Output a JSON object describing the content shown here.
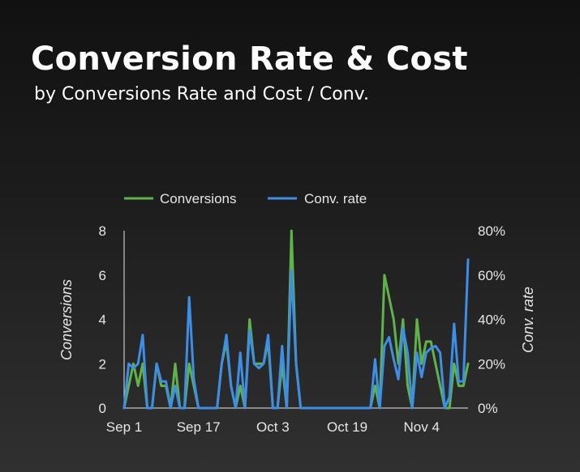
{
  "header": {
    "title": "Conversion Rate & Cost",
    "subtitle": "by Conversions Rate and Cost / Conv."
  },
  "colors": {
    "conversions": "#5fb348",
    "conv_rate": "#3d8ee6",
    "axis": "#e6e6e6"
  },
  "chart_data": {
    "type": "line",
    "title": "Conversion Rate & Cost",
    "subtitle": "by Conversions Rate and Cost / Conv.",
    "xlabel": "",
    "ylabel": "Conversions",
    "y2label": "Conv. rate",
    "ylim": [
      0,
      8
    ],
    "y2lim": [
      0,
      0.8
    ],
    "yticks": [
      "0",
      "2",
      "4",
      "6",
      "8"
    ],
    "y2ticks": [
      "0%",
      "20%",
      "40%",
      "60%",
      "80%"
    ],
    "xticks": [
      {
        "day": 0,
        "label": "Sep 1"
      },
      {
        "day": 16,
        "label": "Sep 17"
      },
      {
        "day": 32,
        "label": "Oct 3"
      },
      {
        "day": 48,
        "label": "Oct 19"
      },
      {
        "day": 64,
        "label": "Nov 4"
      }
    ],
    "legend": {
      "position": "top",
      "items": [
        "Conversions",
        "Conv. rate"
      ]
    },
    "series": [
      {
        "name": "Conversions",
        "axis": "left",
        "values": [
          0,
          1,
          2,
          1,
          2,
          0,
          0,
          2,
          1,
          1,
          0,
          2,
          0,
          0,
          2,
          1,
          0,
          0,
          0,
          0,
          0,
          2,
          3,
          1,
          0,
          1,
          0,
          4,
          2,
          2,
          2,
          3,
          0,
          0,
          2,
          0,
          8,
          2,
          0,
          0,
          0,
          0,
          0,
          0,
          0,
          0,
          0,
          0,
          0,
          0,
          0,
          0,
          0,
          0,
          1,
          0,
          6,
          5,
          4,
          2,
          4,
          1,
          0,
          4,
          2,
          3,
          3,
          2,
          1,
          0,
          0,
          2,
          1,
          1,
          2
        ]
      },
      {
        "name": "Conv. rate",
        "axis": "right",
        "values": [
          0,
          0.2,
          0.18,
          0.2,
          0.33,
          0,
          0,
          0.2,
          0.12,
          0.12,
          0,
          0.1,
          0,
          0,
          0.5,
          0.13,
          0,
          0,
          0,
          0,
          0,
          0.2,
          0.33,
          0.1,
          0,
          0.25,
          0,
          0.35,
          0.2,
          0.18,
          0.2,
          0.33,
          0,
          0,
          0.28,
          0,
          0.62,
          0.2,
          0,
          0,
          0,
          0,
          0,
          0,
          0,
          0,
          0,
          0,
          0,
          0,
          0,
          0,
          0,
          0,
          0.22,
          0,
          0.28,
          0.32,
          0.22,
          0.13,
          0.36,
          0.25,
          0,
          0.25,
          0.14,
          0.25,
          0.27,
          0.28,
          0.25,
          0,
          0.05,
          0.38,
          0.12,
          0.12,
          0.67
        ]
      }
    ]
  }
}
